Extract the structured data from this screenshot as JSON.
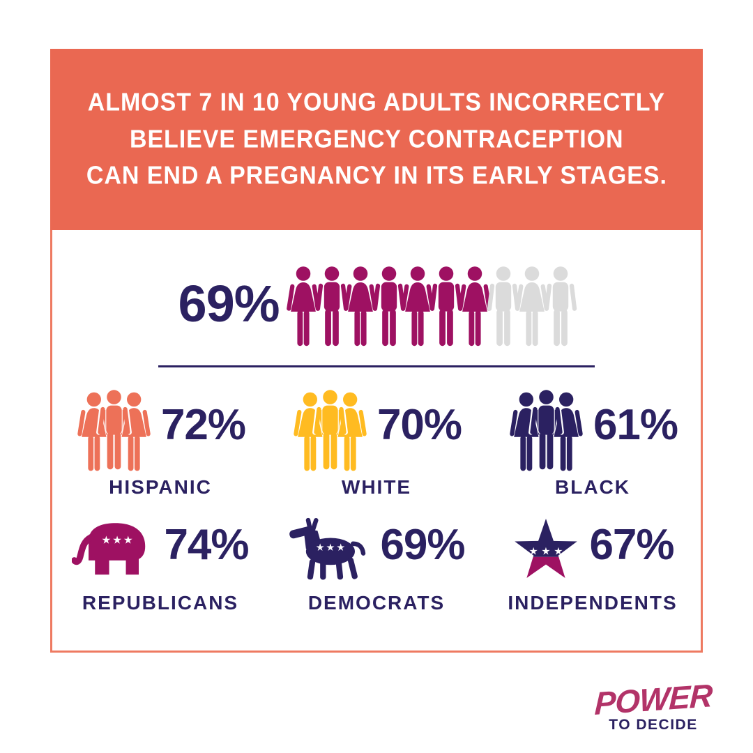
{
  "header": {
    "lines": [
      "ALMOST 7 IN 10 YOUNG ADULTS INCORRECTLY",
      "BELIEVE EMERGENCY CONTRACEPTION",
      "CAN END A PREGNANCY IN ITS EARLY STAGES."
    ]
  },
  "chart_data": {
    "type": "pictograph",
    "title": "Almost 7 in 10 young adults incorrectly believe emergency contraception can end a pregnancy in its early stages.",
    "overall": {
      "percent": "69%",
      "value": 69,
      "filled_icons": 7,
      "total_icons": 10,
      "icon_pattern": "alternating woman/man, filled magenta, remainder gray"
    },
    "groups": [
      {
        "label": "HISPANIC",
        "percent": "72%",
        "value": 72,
        "icon": "people-group-icon",
        "color": "#ED7158"
      },
      {
        "label": "WHITE",
        "percent": "70%",
        "value": 70,
        "icon": "people-group-icon",
        "color": "#FFBB21"
      },
      {
        "label": "BLACK",
        "percent": "61%",
        "value": 61,
        "icon": "people-group-icon",
        "color": "#2B2161"
      },
      {
        "label": "REPUBLICANS",
        "percent": "74%",
        "value": 74,
        "icon": "republican-elephant-icon",
        "color": "#9E1162"
      },
      {
        "label": "DEMOCRATS",
        "percent": "69%",
        "value": 69,
        "icon": "democrat-donkey-icon",
        "color": "#2B2161"
      },
      {
        "label": "INDEPENDENTS",
        "percent": "67%",
        "value": 67,
        "icon": "independent-star-icon",
        "color": "#2B2161"
      }
    ],
    "legend_position": "none",
    "grid": false
  },
  "colors": {
    "coral_header": "#EA6852",
    "coral_border": "#EE7A61",
    "magenta": "#9E1162",
    "navy": "#2B2161",
    "yellow": "#FFBB21",
    "gray": "#DBDBDB",
    "coral_people": "#ED7158",
    "star_bottom_magenta": "#9E1162",
    "logo_pink": "#B23368",
    "white": "#FFFFFF"
  },
  "logo": {
    "line1": "POWER",
    "line2": "TO DECIDE"
  }
}
